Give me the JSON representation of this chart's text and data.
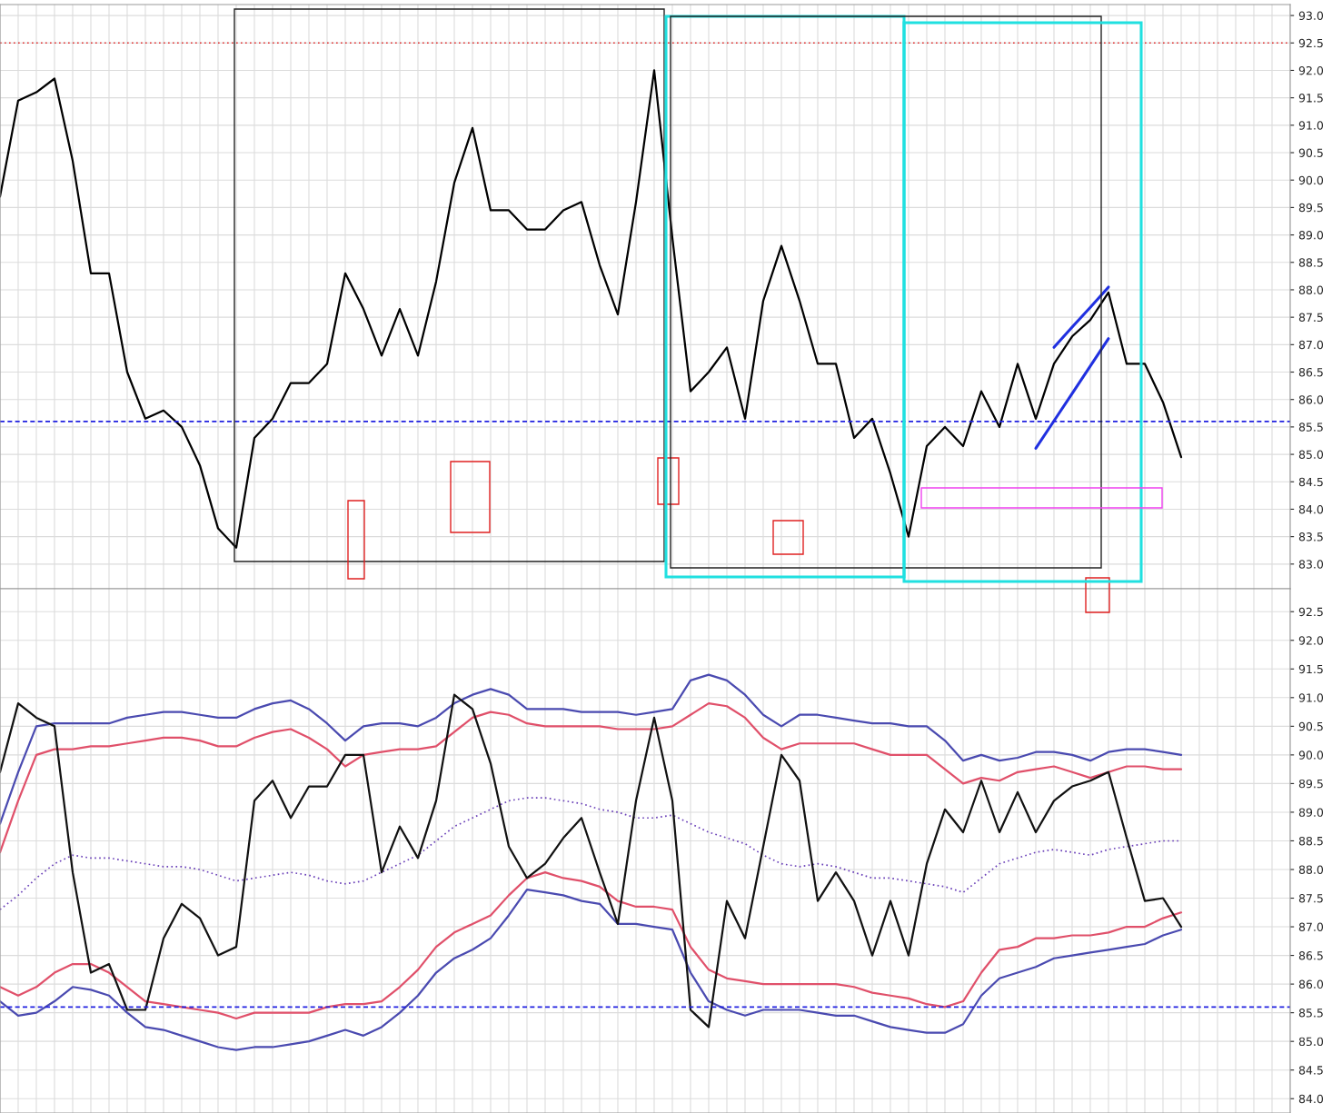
{
  "chart_data": [
    {
      "type": "line",
      "categories": [
        null,
        null,
        null,
        null,
        null,
        null,
        null,
        null,
        null,
        null,
        null,
        null,
        null,
        null,
        null,
        null,
        null,
        null,
        null,
        null,
        null,
        null,
        null,
        null,
        null,
        null,
        null,
        null,
        null,
        null,
        null,
        null,
        null,
        null,
        null,
        null,
        null,
        null,
        null,
        null,
        null,
        null,
        null,
        null,
        null,
        null,
        null,
        null,
        null,
        null,
        null,
        null,
        null,
        null,
        null,
        null,
        null,
        null,
        null,
        null,
        null,
        null,
        null,
        null,
        null,
        null,
        null,
        null,
        null,
        null,
        null,
        null
      ],
      "series": [
        {
          "color": "#000000",
          "values": [
            89.7,
            91.45,
            91.6,
            91.85,
            90.35,
            88.3,
            88.3,
            86.5,
            85.65,
            85.8,
            85.5,
            84.8,
            83.65,
            83.3,
            85.3,
            85.65,
            86.3,
            86.3,
            86.65,
            88.3,
            87.65,
            86.8,
            87.65,
            86.8,
            88.15,
            89.95,
            90.95,
            89.45,
            89.45,
            89.1,
            89.1,
            89.45,
            89.6,
            88.45,
            87.55,
            89.6,
            92.0,
            88.95,
            86.15,
            86.5,
            86.95,
            85.65,
            87.8,
            88.8,
            87.8,
            86.65,
            86.65,
            85.3,
            85.65,
            84.65,
            83.5,
            85.15,
            85.5,
            85.15,
            86.15,
            85.5,
            86.65,
            85.65,
            86.65,
            87.15,
            87.45,
            87.95,
            86.65,
            86.65,
            85.95,
            84.95,
            null,
            null,
            null,
            null,
            null,
            null
          ]
        },
        {
          "type": "line",
          "color": "#2030e0",
          "values": [
            null,
            null,
            null,
            null,
            null,
            null,
            null,
            null,
            null,
            null,
            null,
            null,
            null,
            null,
            null,
            null,
            null,
            null,
            null,
            null,
            null,
            null,
            null,
            null,
            null,
            null,
            null,
            null,
            null,
            null,
            null,
            null,
            null,
            null,
            null,
            null,
            null,
            null,
            null,
            null,
            null,
            null,
            null,
            null,
            null,
            null,
            null,
            null,
            null,
            null,
            null,
            null,
            null,
            null,
            null,
            null,
            null,
            null,
            86.95,
            87.32,
            87.68,
            88.05,
            null,
            null,
            null,
            null,
            null,
            null,
            null,
            null,
            null,
            null
          ]
        },
        {
          "type": "line",
          "color": "#2030e0",
          "values": [
            null,
            null,
            null,
            null,
            null,
            null,
            null,
            null,
            null,
            null,
            null,
            null,
            null,
            null,
            null,
            null,
            null,
            null,
            null,
            null,
            null,
            null,
            null,
            null,
            null,
            null,
            null,
            null,
            null,
            null,
            null,
            null,
            null,
            null,
            null,
            null,
            null,
            null,
            null,
            null,
            null,
            null,
            null,
            null,
            null,
            null,
            null,
            null,
            null,
            null,
            null,
            null,
            null,
            null,
            null,
            null,
            null,
            85.11,
            85.61,
            86.11,
            86.61,
            87.11,
            null,
            null,
            null,
            null,
            null,
            null,
            null,
            null,
            null,
            null
          ]
        }
      ],
      "ylim": [
        82.55,
        93.2
      ],
      "yticks": [
        {
          "value": 83,
          "label": "83.0"
        },
        83.5,
        {
          "value": 84,
          "label": "84.0"
        },
        84.5,
        {
          "value": 85,
          "label": "85.0"
        },
        85.5,
        {
          "value": 86,
          "label": "86.0"
        },
        86.5,
        {
          "value": 87,
          "label": "87.0"
        },
        87.5,
        {
          "value": 88,
          "label": "88.0"
        },
        88.5,
        {
          "value": 89,
          "label": "89.0"
        },
        89.5,
        {
          "value": 90,
          "label": "90.0"
        },
        90.5,
        {
          "value": 91,
          "label": "91.0"
        },
        91.5,
        {
          "value": 92,
          "label": "92.0"
        },
        92.5,
        {
          "value": 93,
          "label": "93.0"
        }
      ],
      "ref_lines": [
        {
          "axis": "y",
          "value": 92.5,
          "color": "#e03030",
          "line_style": "dotted"
        },
        {
          "axis": "y",
          "value": 85.6,
          "color": "#2020e0",
          "line_style": "dashed"
        }
      ],
      "grid": true,
      "tick_labels": "y",
      "line_style": "solid"
    },
    {
      "type": "line",
      "categories": [
        null,
        null,
        null,
        null,
        null,
        null,
        null,
        null,
        null,
        null,
        null,
        null,
        null,
        null,
        null,
        null,
        null,
        null,
        null,
        null,
        null,
        null,
        null,
        null,
        null,
        null,
        null,
        null,
        null,
        null,
        null,
        null,
        null,
        null,
        null,
        null,
        null,
        null,
        null,
        null,
        null,
        null,
        null,
        null,
        null,
        null,
        null,
        null,
        null,
        null,
        null,
        null,
        null,
        null,
        null,
        null,
        null,
        null,
        null,
        null,
        null,
        null,
        null,
        null,
        null,
        null,
        null,
        null,
        null,
        null,
        null,
        null
      ],
      "series": [
        {
          "color": "#4a4ab0",
          "values": [
            88.8,
            89.7,
            90.5,
            90.55,
            90.55,
            90.55,
            90.55,
            90.65,
            90.7,
            90.75,
            90.75,
            90.7,
            90.65,
            90.65,
            90.8,
            90.9,
            90.95,
            90.8,
            90.55,
            90.25,
            90.5,
            90.55,
            90.55,
            90.5,
            90.65,
            90.9,
            91.05,
            91.15,
            91.05,
            90.8,
            90.8,
            90.8,
            90.75,
            90.75,
            90.75,
            90.7,
            90.75,
            90.8,
            91.3,
            91.4,
            91.3,
            91.05,
            90.7,
            90.5,
            90.7,
            90.7,
            90.65,
            90.6,
            90.55,
            90.55,
            90.5,
            90.5,
            90.25,
            89.9,
            90.0,
            89.9,
            89.95,
            90.05,
            90.05,
            90.0,
            89.9,
            90.05,
            90.1,
            90.1,
            90.05,
            90.0,
            null,
            null,
            null,
            null,
            null,
            null
          ]
        },
        {
          "color": "#e0506a",
          "values": [
            88.3,
            89.2,
            90.0,
            90.1,
            90.1,
            90.15,
            90.15,
            90.2,
            90.25,
            90.3,
            90.3,
            90.25,
            90.15,
            90.15,
            90.3,
            90.4,
            90.45,
            90.3,
            90.1,
            89.8,
            90.0,
            90.05,
            90.1,
            90.1,
            90.15,
            90.4,
            90.65,
            90.75,
            90.7,
            90.55,
            90.5,
            90.5,
            90.5,
            90.5,
            90.45,
            90.45,
            90.45,
            90.5,
            90.7,
            90.9,
            90.85,
            90.65,
            90.3,
            90.1,
            90.2,
            90.2,
            90.2,
            90.2,
            90.1,
            90.0,
            90.0,
            90.0,
            89.75,
            89.5,
            89.6,
            89.55,
            89.7,
            89.75,
            89.8,
            89.7,
            89.6,
            89.7,
            89.8,
            89.8,
            89.75,
            89.75,
            null,
            null,
            null,
            null,
            null,
            null
          ]
        },
        {
          "color": "#6a40b8",
          "line_style": "dotted",
          "values": [
            87.3,
            87.55,
            87.85,
            88.1,
            88.25,
            88.2,
            88.2,
            88.15,
            88.1,
            88.05,
            88.05,
            88.0,
            87.9,
            87.8,
            87.85,
            87.9,
            87.95,
            87.9,
            87.8,
            87.75,
            87.8,
            87.95,
            88.1,
            88.25,
            88.5,
            88.75,
            88.9,
            89.05,
            89.2,
            89.25,
            89.25,
            89.2,
            89.15,
            89.05,
            89.0,
            88.9,
            88.9,
            88.95,
            88.8,
            88.65,
            88.55,
            88.45,
            88.25,
            88.1,
            88.05,
            88.1,
            88.05,
            87.95,
            87.85,
            87.85,
            87.8,
            87.75,
            87.7,
            87.6,
            87.85,
            88.1,
            88.2,
            88.3,
            88.35,
            88.3,
            88.25,
            88.35,
            88.4,
            88.45,
            88.5,
            88.5,
            null,
            null,
            null,
            null,
            null,
            null
          ]
        },
        {
          "color": "#e0506a",
          "values": [
            85.95,
            85.8,
            85.95,
            86.2,
            86.35,
            86.35,
            86.2,
            85.95,
            85.7,
            85.65,
            85.6,
            85.55,
            85.5,
            85.4,
            85.5,
            85.5,
            85.5,
            85.5,
            85.6,
            85.65,
            85.65,
            85.7,
            85.95,
            86.25,
            86.65,
            86.9,
            87.05,
            87.2,
            87.55,
            87.85,
            87.95,
            87.85,
            87.8,
            87.7,
            87.45,
            87.35,
            87.35,
            87.3,
            86.65,
            86.25,
            86.1,
            86.05,
            86.0,
            86.0,
            86.0,
            86.0,
            86.0,
            85.95,
            85.85,
            85.8,
            85.75,
            85.65,
            85.6,
            85.7,
            86.2,
            86.6,
            86.65,
            86.8,
            86.8,
            86.85,
            86.85,
            86.9,
            87.0,
            87.0,
            87.15,
            87.25,
            null,
            null,
            null,
            null,
            null,
            null
          ]
        },
        {
          "color": "#4a4ab0",
          "values": [
            85.7,
            85.45,
            85.5,
            85.7,
            85.95,
            85.9,
            85.8,
            85.5,
            85.25,
            85.2,
            85.1,
            85.0,
            84.9,
            84.85,
            84.9,
            84.9,
            84.95,
            85.0,
            85.1,
            85.2,
            85.1,
            85.25,
            85.5,
            85.8,
            86.2,
            86.45,
            86.6,
            86.8,
            87.2,
            87.65,
            87.6,
            87.55,
            87.45,
            87.4,
            87.05,
            87.05,
            87.0,
            86.95,
            86.2,
            85.7,
            85.55,
            85.45,
            85.55,
            85.55,
            85.55,
            85.5,
            85.45,
            85.45,
            85.35,
            85.25,
            85.2,
            85.15,
            85.15,
            85.3,
            85.8,
            86.1,
            86.2,
            86.3,
            86.45,
            86.5,
            86.55,
            86.6,
            86.65,
            86.7,
            86.85,
            86.95,
            null,
            null,
            null,
            null,
            null,
            null
          ]
        },
        {
          "color": "#111111",
          "values": [
            89.7,
            90.9,
            90.65,
            90.5,
            87.95,
            86.2,
            86.35,
            85.55,
            85.55,
            86.8,
            87.4,
            87.15,
            86.5,
            86.65,
            89.2,
            89.55,
            88.9,
            89.45,
            89.45,
            90.0,
            90.0,
            87.95,
            88.75,
            88.2,
            89.2,
            91.05,
            90.8,
            89.85,
            88.4,
            87.85,
            88.1,
            88.55,
            88.9,
            87.95,
            87.05,
            89.2,
            90.65,
            89.2,
            85.55,
            85.25,
            87.45,
            86.8,
            88.4,
            90.0,
            89.55,
            87.45,
            87.95,
            87.45,
            86.5,
            87.45,
            86.5,
            88.1,
            89.05,
            88.65,
            89.55,
            88.65,
            89.35,
            88.65,
            89.2,
            89.45,
            89.55,
            89.7,
            88.55,
            87.45,
            87.5,
            87.0,
            null,
            null,
            null,
            null,
            null,
            null
          ]
        }
      ],
      "ylim": [
        83.75,
        92.9
      ],
      "yticks": [
        {
          "value": 84,
          "label": "84.0"
        },
        84.5,
        {
          "value": 85,
          "label": "85.0"
        },
        85.5,
        {
          "value": 86,
          "label": "86.0"
        },
        86.5,
        {
          "value": 87,
          "label": "87.0"
        },
        87.5,
        {
          "value": 88,
          "label": "88.0"
        },
        88.5,
        {
          "value": 89,
          "label": "89.0"
        },
        89.5,
        {
          "value": 90,
          "label": "90.0"
        },
        90.5,
        {
          "value": 91,
          "label": "91.0"
        },
        91.5,
        {
          "value": 92,
          "label": "92.0"
        },
        92.5
      ],
      "ref_lines": [
        {
          "axis": "y",
          "value": 85.6,
          "color": "#2020e0",
          "line_style": "dashed"
        }
      ],
      "grid": true,
      "tick_labels": "y",
      "line_style": "solid"
    }
  ]
}
